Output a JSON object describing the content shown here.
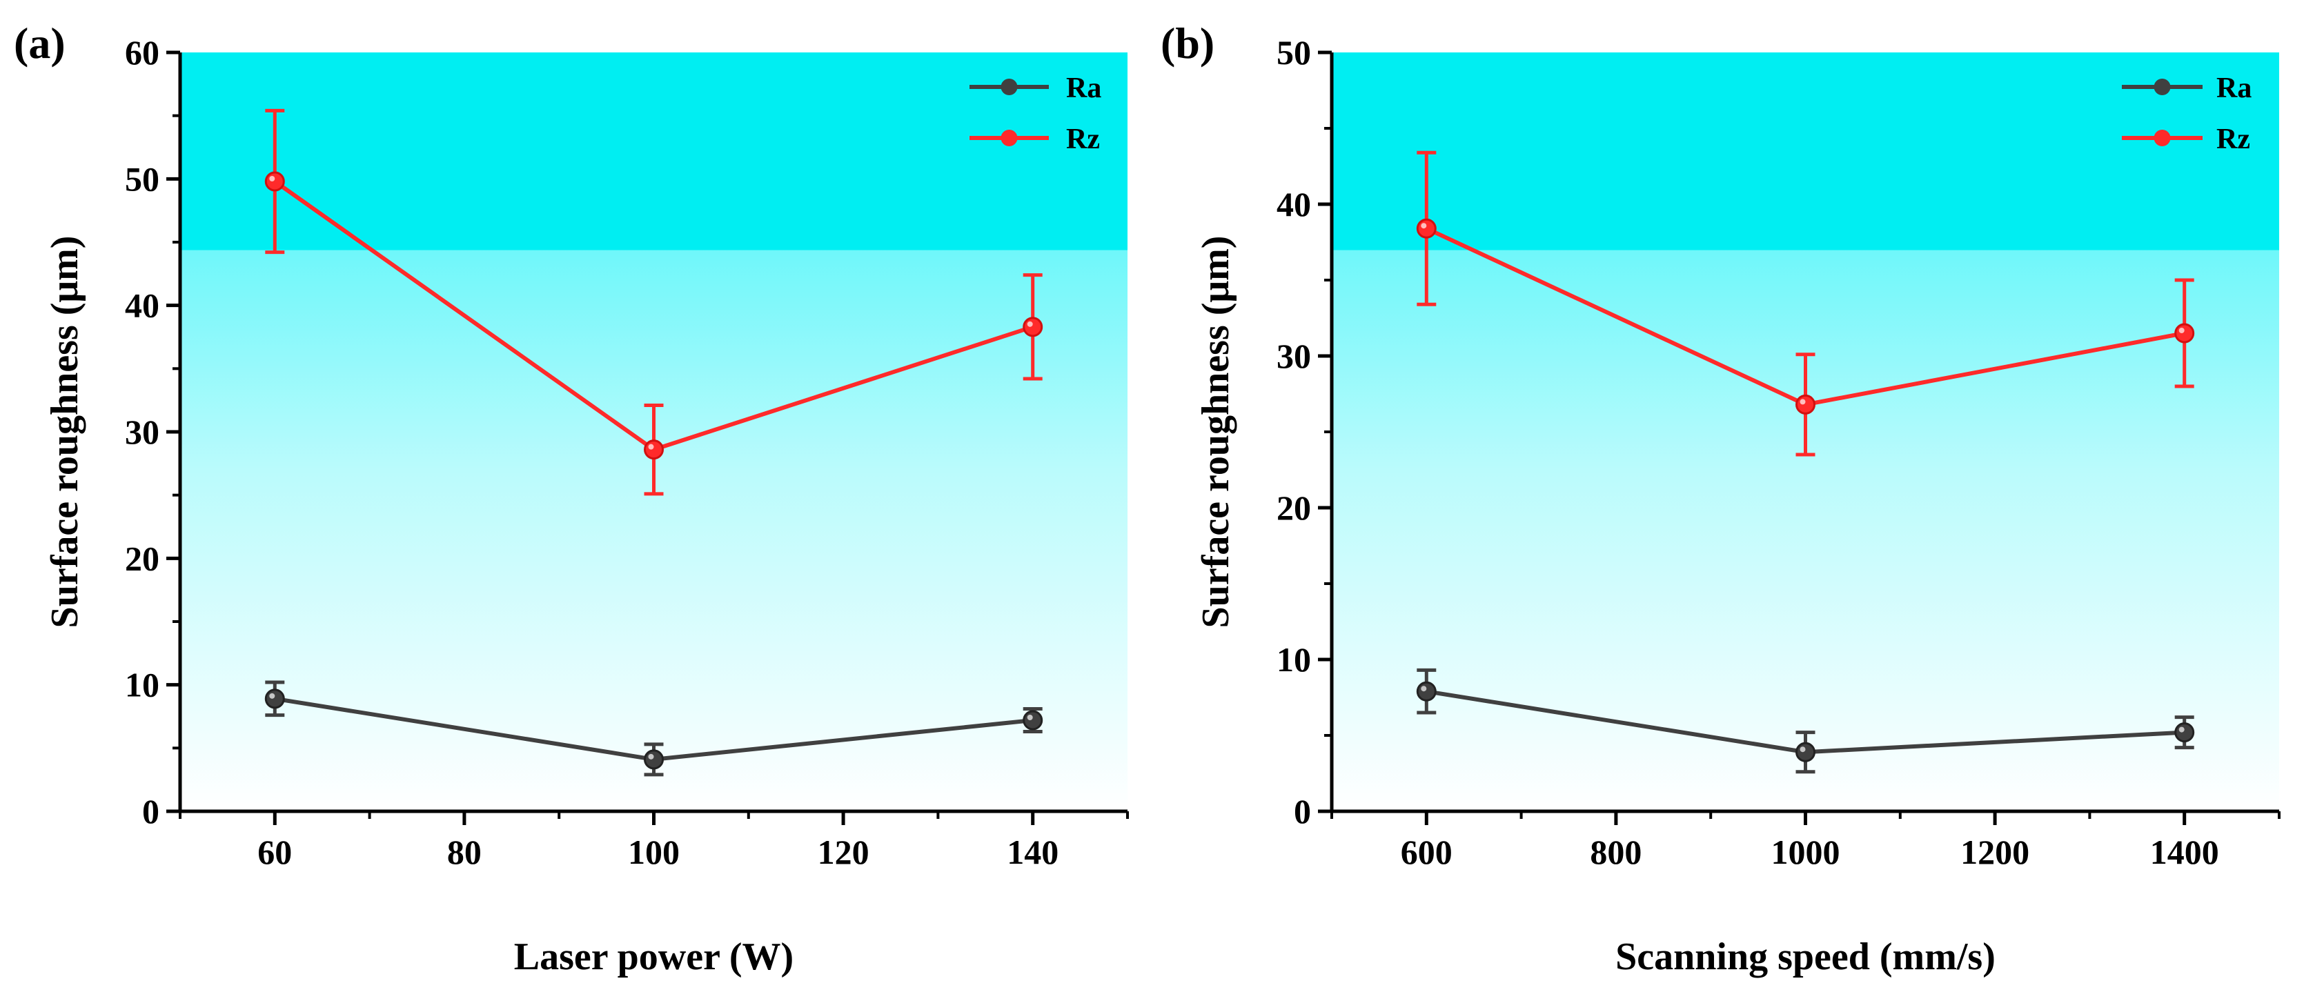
{
  "chart_data": [
    {
      "type": "line",
      "panel_label": "(a)",
      "title": "",
      "xlabel": "Laser power (W)",
      "ylabel": "Surface roughness (μm)",
      "xlim": [
        50,
        150
      ],
      "ylim": [
        0,
        60
      ],
      "xticks": [
        60,
        80,
        100,
        120,
        140
      ],
      "yticks": [
        0,
        10,
        20,
        30,
        40,
        50,
        60
      ],
      "x": [
        60,
        100,
        140
      ],
      "legend_position": "top-right",
      "series": [
        {
          "name": "Ra",
          "color": "#404040",
          "values": [
            8.9,
            4.1,
            7.2
          ],
          "errors": [
            1.3,
            1.2,
            0.9
          ]
        },
        {
          "name": "Rz",
          "color": "#ff2a2a",
          "values": [
            49.8,
            28.6,
            38.3
          ],
          "errors": [
            5.6,
            3.5,
            4.1
          ]
        }
      ]
    },
    {
      "type": "line",
      "panel_label": "(b)",
      "title": "",
      "xlabel": "Scanning speed (mm/s)",
      "ylabel": "Surface roughness (μm)",
      "xlim": [
        500,
        1500
      ],
      "ylim": [
        0,
        50
      ],
      "xticks": [
        600,
        800,
        1000,
        1200,
        1400
      ],
      "yticks": [
        0,
        10,
        20,
        30,
        40,
        50
      ],
      "x": [
        600,
        1000,
        1400
      ],
      "legend_position": "top-right",
      "series": [
        {
          "name": "Ra",
          "color": "#404040",
          "values": [
            7.9,
            3.9,
            5.2
          ],
          "errors": [
            1.4,
            1.3,
            1.0
          ]
        },
        {
          "name": "Rz",
          "color": "#ff2a2a",
          "values": [
            38.4,
            26.8,
            31.5
          ],
          "errors": [
            5.0,
            3.3,
            3.5
          ]
        }
      ]
    }
  ]
}
